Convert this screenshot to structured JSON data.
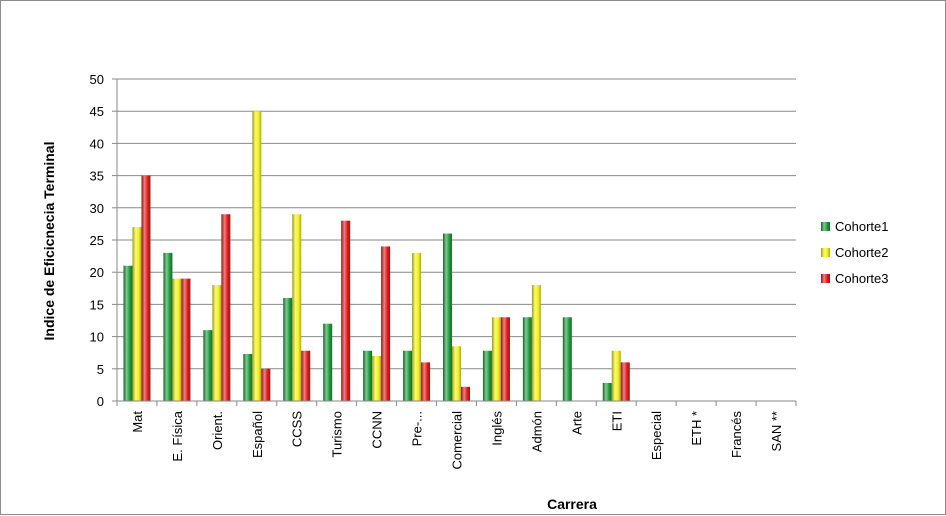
{
  "chart_data": {
    "type": "bar",
    "title": "",
    "xlabel": "Carrera",
    "ylabel": "Indice de Eficicnecia Terminal",
    "ylim": [
      0,
      50
    ],
    "yticks": [
      0,
      5,
      10,
      15,
      20,
      25,
      30,
      35,
      40,
      45,
      50
    ],
    "grid": true,
    "legend_position": "right",
    "categories": [
      "Mat",
      "E. Física",
      "Orient.",
      "Español",
      "CCSS",
      "Turismo",
      "CCNN",
      "Pre-...",
      "Comercial",
      "Inglés",
      "Admón",
      "Arte",
      "ETI",
      "Especial",
      "ETH *",
      "Francés",
      "SAN **"
    ],
    "series": [
      {
        "name": "Cohorte1",
        "color": "#1e9b3c",
        "values": [
          21,
          23,
          11,
          7.3,
          16,
          12,
          7.8,
          7.8,
          26,
          7.8,
          13,
          13,
          2.8,
          0,
          0,
          0,
          0
        ]
      },
      {
        "name": "Cohorte2",
        "color": "#f2f21a",
        "values": [
          27,
          19,
          18,
          45,
          29,
          0,
          7,
          23,
          8.5,
          13,
          18,
          0,
          7.8,
          0,
          0,
          0,
          0
        ]
      },
      {
        "name": "Cohorte3",
        "color": "#e01b1b",
        "values": [
          35,
          19,
          29,
          5,
          7.8,
          28,
          24,
          6,
          2.2,
          13,
          0,
          0,
          6,
          0,
          0,
          0,
          0
        ]
      }
    ]
  }
}
